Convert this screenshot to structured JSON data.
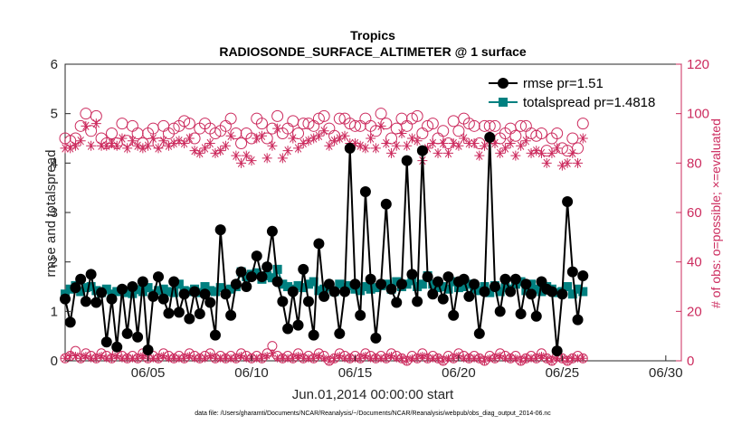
{
  "chart_data": {
    "type": "line",
    "title": "Tropics",
    "subtitle": "RADIOSONDE_SURFACE_ALTIMETER @ 1 surface",
    "xlabel": "Jun.01,2014 00:00:00 start",
    "ylabel": "rmse and totalspread",
    "ylabel_right": "# of obs: o=possible; ×=evaluated",
    "footnote": "data file: /Users/gharamti/Documents/NCAR/Reanalysis/~/Documents/NCAR/Reanalysis/webpub/obs_diag_output_2014-06.nc",
    "xlim": [
      1,
      30.75
    ],
    "ylim": [
      0,
      6
    ],
    "ylim_right": [
      0,
      120
    ],
    "x_ticks": [
      5,
      10,
      15,
      20,
      25,
      30
    ],
    "x_tick_labels": [
      "06/05",
      "06/10",
      "06/15",
      "06/20",
      "06/25",
      "06/30"
    ],
    "y_ticks": [
      "0",
      "1",
      "2",
      "3",
      "4",
      "5",
      "6"
    ],
    "y_ticks_right": [
      "0",
      "20",
      "40",
      "60",
      "80",
      "100",
      "120"
    ],
    "legend": [
      "rmse pr=1.51",
      "totalspread pr=1.4818"
    ],
    "legend_position": "top-right",
    "time_step_days": 0.25,
    "series": [
      {
        "name": "rmse",
        "axis": "left",
        "color": "#000000",
        "marker": "filled-circle",
        "values": [
          1.25,
          0.78,
          1.48,
          1.65,
          1.2,
          1.75,
          1.18,
          1.38,
          0.38,
          1.25,
          0.28,
          1.45,
          0.55,
          1.5,
          0.48,
          1.6,
          0.22,
          1.3,
          1.7,
          1.25,
          0.96,
          1.6,
          0.98,
          1.35,
          0.85,
          1.4,
          0.95,
          1.35,
          1.18,
          0.52,
          2.65,
          1.35,
          0.92,
          1.55,
          1.8,
          1.5,
          1.7,
          2.12,
          1.7,
          1.9,
          2.62,
          1.6,
          1.2,
          0.65,
          1.4,
          0.72,
          1.85,
          1.2,
          0.52,
          2.37,
          1.3,
          1.55,
          1.4,
          0.55,
          1.4,
          4.3,
          1.55,
          0.92,
          3.42,
          1.65,
          0.46,
          1.55,
          3.17,
          1.45,
          1.18,
          1.55,
          4.05,
          1.75,
          1.2,
          4.25,
          1.7,
          1.35,
          1.6,
          1.25,
          1.7,
          0.92,
          1.6,
          1.65,
          1.3,
          1.55,
          0.55,
          1.4,
          4.52,
          1.5,
          1.0,
          1.65,
          1.4,
          1.65,
          0.95,
          1.55,
          1.35,
          0.9,
          1.6,
          1.45,
          1.4,
          0.2,
          1.35,
          3.22,
          1.8,
          0.83,
          1.72
        ]
      },
      {
        "name": "totalspread",
        "axis": "left",
        "color": "#008080",
        "marker": "filled-square",
        "values": [
          1.35,
          1.45,
          1.52,
          1.4,
          1.48,
          1.5,
          1.42,
          1.38,
          1.45,
          1.35,
          1.4,
          1.42,
          1.38,
          1.36,
          1.44,
          1.4,
          1.48,
          1.35,
          1.42,
          1.45,
          1.4,
          1.38,
          1.55,
          1.42,
          1.4,
          1.45,
          1.38,
          1.5,
          1.42,
          1.4,
          1.48,
          1.42,
          1.45,
          1.5,
          1.8,
          1.7,
          1.75,
          1.78,
          1.65,
          1.72,
          1.68,
          1.85,
          1.55,
          1.5,
          1.45,
          1.52,
          1.48,
          1.55,
          1.6,
          1.42,
          1.45,
          1.5,
          1.4,
          1.55,
          1.48,
          1.52,
          1.45,
          1.42,
          1.5,
          1.45,
          1.48,
          1.52,
          1.55,
          1.45,
          1.6,
          1.5,
          1.55,
          1.62,
          1.5,
          1.55,
          1.72,
          1.55,
          1.48,
          1.5,
          1.45,
          1.6,
          1.48,
          1.5,
          1.55,
          1.45,
          1.42,
          1.5,
          1.38,
          1.52,
          1.4,
          1.48,
          1.45,
          1.55,
          1.6,
          1.42,
          1.55,
          1.45,
          1.4,
          1.5,
          1.45,
          1.38,
          1.4,
          1.5,
          1.35,
          1.45,
          1.4
        ]
      },
      {
        "name": "possible",
        "axis": "right",
        "color": "#cc2b5e",
        "marker": "open-circle",
        "values": [
          90,
          89,
          90,
          95,
          100,
          93,
          99,
          90,
          88,
          92,
          88,
          96,
          89,
          95,
          92,
          88,
          92,
          94,
          88,
          95,
          92,
          94,
          95,
          97,
          96,
          90,
          94,
          96,
          94,
          92,
          93,
          95,
          98,
          92,
          88,
          92,
          90,
          98,
          96,
          90,
          94,
          99,
          92,
          94,
          97,
          92,
          96,
          96,
          95,
          98,
          99,
          94,
          91,
          98,
          98,
          96,
          95,
          95,
          98,
          95,
          93,
          100,
          96,
          90,
          94,
          98,
          95,
          98,
          99,
          92,
          95,
          96,
          90,
          93,
          88,
          97,
          93,
          98,
          96,
          95,
          88,
          95,
          95,
          95,
          90,
          92,
          94,
          91,
          95,
          95,
          92,
          91,
          92,
          85,
          90,
          92,
          86,
          85,
          90,
          86,
          96
        ]
      },
      {
        "name": "evaluated",
        "axis": "right",
        "color": "#cc2b5e",
        "marker": "asterisk",
        "values": [
          86,
          86,
          87,
          89,
          95,
          87,
          96,
          87,
          87,
          88,
          87,
          90,
          86,
          89,
          87,
          86,
          87,
          90,
          86,
          89,
          87,
          88,
          89,
          88,
          90,
          85,
          84,
          86,
          88,
          84,
          85,
          87,
          91,
          83,
          80,
          83,
          81,
          90,
          91,
          82,
          87,
          94,
          82,
          85,
          90,
          86,
          88,
          89,
          90,
          91,
          93,
          87,
          89,
          90,
          91,
          88,
          88,
          87,
          86,
          90,
          86,
          95,
          88,
          84,
          87,
          92,
          87,
          90,
          89,
          81,
          86,
          88,
          84,
          88,
          84,
          88,
          87,
          90,
          88,
          88,
          83,
          87,
          89,
          88,
          84,
          86,
          88,
          83,
          87,
          89,
          84,
          85,
          84,
          80,
          84,
          86,
          79,
          80,
          84,
          80,
          90
        ]
      },
      {
        "name": "possible_low",
        "axis": "right",
        "color": "#cc2b5e",
        "marker": "open-circle",
        "values": [
          1,
          2,
          4,
          1,
          3,
          2,
          1,
          3,
          2,
          1,
          3,
          2,
          1,
          2,
          1,
          3,
          1,
          2,
          1,
          3,
          2,
          1,
          2,
          1,
          3,
          2,
          1,
          2,
          3,
          1,
          2,
          1,
          2,
          1,
          3,
          2,
          1,
          2,
          1,
          3,
          6,
          2,
          1,
          2,
          1,
          3,
          1,
          2,
          1,
          3,
          2,
          0,
          1,
          3,
          2,
          1,
          2,
          1,
          3,
          2,
          1,
          2,
          1,
          3,
          2,
          1,
          0,
          2,
          1,
          3,
          1,
          2,
          1,
          0,
          2,
          1,
          3,
          2,
          1,
          2,
          1,
          0,
          2,
          1,
          3,
          2,
          1,
          2,
          0,
          1,
          2,
          1,
          3,
          1,
          0,
          2,
          1,
          0,
          1,
          2,
          1
        ]
      },
      {
        "name": "evaluated_low",
        "axis": "right",
        "color": "#cc2b5e",
        "marker": "asterisk",
        "values": [
          1,
          2,
          2,
          1,
          2,
          1,
          1,
          2,
          1,
          1,
          2,
          1,
          1,
          1,
          1,
          2,
          1,
          1,
          1,
          2,
          1,
          1,
          1,
          1,
          2,
          1,
          1,
          1,
          2,
          1,
          1,
          1,
          1,
          1,
          2,
          1,
          1,
          1,
          1,
          2,
          3,
          1,
          1,
          1,
          1,
          2,
          1,
          1,
          1,
          2,
          1,
          0,
          1,
          2,
          1,
          1,
          1,
          1,
          2,
          1,
          1,
          1,
          1,
          2,
          1,
          1,
          0,
          1,
          1,
          2,
          1,
          1,
          1,
          0,
          1,
          1,
          2,
          1,
          1,
          1,
          1,
          0,
          1,
          1,
          2,
          1,
          1,
          1,
          0,
          1,
          1,
          1,
          2,
          1,
          0,
          1,
          1,
          0,
          1,
          1,
          1
        ]
      }
    ]
  }
}
